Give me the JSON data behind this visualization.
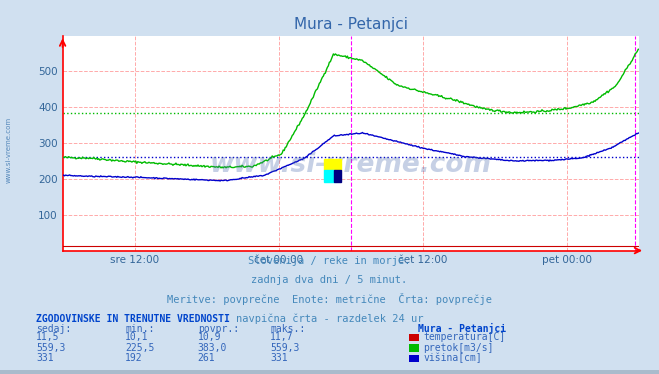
{
  "title": "Mura - Petanjci",
  "bg_color": "#d0e0f0",
  "plot_bg_color": "#ffffff",
  "grid_color": "#ffaaaa",
  "xlabel_ticks": [
    "sre 12:00",
    "čet 00:00",
    "čet 12:00",
    "pet 00:00"
  ],
  "xlabel_tick_positions": [
    0.125,
    0.375,
    0.625,
    0.875
  ],
  "ylim": [
    0,
    600
  ],
  "yticks": [
    100,
    200,
    300,
    400,
    500
  ],
  "subtitle_lines": [
    "Slovenija / reke in morje.",
    "zadnja dva dni / 5 minut.",
    "Meritve: povprečne  Enote: metrične  Črta: povprečje",
    "navpična črta - razdelek 24 ur"
  ],
  "table_header": "ZGODOVINSKE IN TRENUTNE VREDNOSTI",
  "table_col_headers": [
    "sedaj:",
    "min.:",
    "povpr.:",
    "maks.:"
  ],
  "table_col_header_extra": "Mura - Petanjci",
  "table_rows": [
    [
      "11,5",
      "10,1",
      "10,9",
      "11,7",
      "#cc0000",
      "temperatura[C]"
    ],
    [
      "559,3",
      "225,5",
      "383,0",
      "559,3",
      "#00bb00",
      "pretok[m3/s]"
    ],
    [
      "331",
      "192",
      "261",
      "331",
      "#0000cc",
      "višina[cm]"
    ]
  ],
  "pretok_avg": 383.0,
  "visina_avg": 261.0,
  "pretok_color": "#00bb00",
  "visina_color": "#0000cc",
  "temp_color": "#cc0000",
  "magenta_line1": 0.5,
  "magenta_line2": 0.993
}
